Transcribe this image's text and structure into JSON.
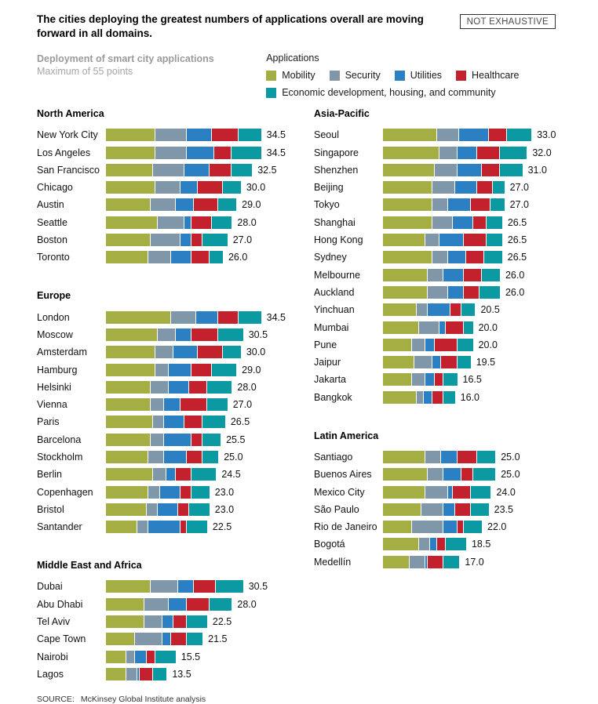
{
  "header": {
    "title": "The cities deploying the greatest numbers of applications overall are moving forward in all domains.",
    "badge": "NOT EXHAUSTIVE"
  },
  "subtitle": {
    "line1": "Deployment of smart city applications",
    "line2": "Maximum of 55 points"
  },
  "legend": {
    "title": "Applications",
    "items": [
      {
        "label": "Mobility",
        "color": "#a4ae42"
      },
      {
        "label": "Security",
        "color": "#8097a9"
      },
      {
        "label": "Utilities",
        "color": "#2b80c4"
      },
      {
        "label": "Healthcare",
        "color": "#c4212e"
      },
      {
        "label": "Economic development, housing, and community",
        "color": "#0c9aa2"
      }
    ]
  },
  "source": {
    "label": "SOURCE:",
    "text": "McKinsey Global Institute analysis"
  },
  "chart_data": {
    "type": "bar",
    "orientation": "horizontal",
    "stacked": true,
    "unit": "points",
    "max_points": 55,
    "series": [
      "Mobility",
      "Security",
      "Utilities",
      "Healthcare",
      "Economic development, housing, and community"
    ],
    "value_labels": "total shown at end of each bar, one decimal",
    "note": "segment values estimated from pixel widths; totals are labeled in the chart",
    "regions": [
      {
        "name": "North America",
        "column": "left",
        "cities": [
          {
            "name": "New York City",
            "total": 34.5,
            "segments": [
              11,
              7,
              5.5,
              6,
              5
            ]
          },
          {
            "name": "Los Angeles",
            "total": 34.5,
            "segments": [
              11,
              7,
              6,
              4,
              6.5
            ]
          },
          {
            "name": "San Francisco",
            "total": 32.5,
            "segments": [
              10.5,
              7,
              5.5,
              5,
              4.5
            ]
          },
          {
            "name": "Chicago",
            "total": 30.0,
            "segments": [
              11,
              5.5,
              4,
              5.5,
              4
            ]
          },
          {
            "name": "Austin",
            "total": 29.0,
            "segments": [
              10,
              5.5,
              4,
              5.5,
              4
            ]
          },
          {
            "name": "Seattle",
            "total": 28.0,
            "segments": [
              11.5,
              6,
              1.5,
              4.5,
              4.5
            ]
          },
          {
            "name": "Boston",
            "total": 27.0,
            "segments": [
              10,
              6.5,
              2.5,
              2.5,
              5.5
            ]
          },
          {
            "name": "Toronto",
            "total": 26.0,
            "segments": [
              9.5,
              5,
              4.5,
              4,
              3
            ]
          }
        ]
      },
      {
        "name": "Europe",
        "column": "left",
        "cities": [
          {
            "name": "London",
            "total": 34.5,
            "segments": [
              14.5,
              5.5,
              5,
              4.5,
              5
            ]
          },
          {
            "name": "Moscow",
            "total": 30.5,
            "segments": [
              11.5,
              4,
              3.5,
              6,
              5.5
            ]
          },
          {
            "name": "Amsterdam",
            "total": 30.0,
            "segments": [
              11,
              4,
              5.5,
              5.5,
              4
            ]
          },
          {
            "name": "Hamburg",
            "total": 29.0,
            "segments": [
              11,
              3,
              5,
              4.5,
              5.5
            ]
          },
          {
            "name": "Helsinki",
            "total": 28.0,
            "segments": [
              10,
              4,
              4.5,
              4,
              5.5
            ]
          },
          {
            "name": "Vienna",
            "total": 27.0,
            "segments": [
              10,
              3,
              3.5,
              6,
              4.5
            ]
          },
          {
            "name": "Paris",
            "total": 26.5,
            "segments": [
              10.5,
              2.5,
              4.5,
              4,
              5
            ]
          },
          {
            "name": "Barcelona",
            "total": 25.5,
            "segments": [
              10,
              3,
              6,
              2.5,
              4
            ]
          },
          {
            "name": "Stockholm",
            "total": 25.0,
            "segments": [
              9.5,
              3.5,
              5,
              3.5,
              3.5
            ]
          },
          {
            "name": "Berlin",
            "total": 24.5,
            "segments": [
              10.5,
              3,
              2,
              3.5,
              5.5
            ]
          },
          {
            "name": "Copenhagen",
            "total": 23.0,
            "segments": [
              9.5,
              2.5,
              4.5,
              2.5,
              4
            ]
          },
          {
            "name": "Bristol",
            "total": 23.0,
            "segments": [
              9,
              2.5,
              4.5,
              2.5,
              4.5
            ]
          },
          {
            "name": "Santander",
            "total": 22.5,
            "segments": [
              7,
              2.5,
              7,
              1.5,
              4.5
            ]
          }
        ]
      },
      {
        "name": "Middle East and Africa",
        "column": "left",
        "cities": [
          {
            "name": "Dubai",
            "total": 30.5,
            "segments": [
              10,
              6,
              3.5,
              5,
              6
            ]
          },
          {
            "name": "Abu Dhabi",
            "total": 28.0,
            "segments": [
              8.5,
              5.5,
              4,
              5,
              5
            ]
          },
          {
            "name": "Tel Aviv",
            "total": 22.5,
            "segments": [
              8.5,
              4,
              2.5,
              3,
              4.5
            ]
          },
          {
            "name": "Cape Town",
            "total": 21.5,
            "segments": [
              6.5,
              6,
              2,
              3.5,
              3.5
            ]
          },
          {
            "name": "Nairobi",
            "total": 15.5,
            "segments": [
              4.5,
              2,
              2.5,
              2,
              4.5
            ]
          },
          {
            "name": "Lagos",
            "total": 13.5,
            "segments": [
              4.5,
              2.5,
              0.5,
              3,
              3
            ]
          }
        ]
      },
      {
        "name": "Asia-Pacific",
        "column": "right",
        "cities": [
          {
            "name": "Seoul",
            "total": 33.0,
            "segments": [
              12,
              5,
              6.5,
              4,
              5.5
            ]
          },
          {
            "name": "Singapore",
            "total": 32.0,
            "segments": [
              12.5,
              4,
              4.5,
              5,
              6
            ]
          },
          {
            "name": "Shenzhen",
            "total": 31.0,
            "segments": [
              11.5,
              5,
              5.5,
              4,
              5
            ]
          },
          {
            "name": "Beijing",
            "total": 27.0,
            "segments": [
              11,
              5,
              5,
              3.5,
              2.5
            ]
          },
          {
            "name": "Tokyo",
            "total": 27.0,
            "segments": [
              11,
              3.5,
              5,
              4.5,
              3
            ]
          },
          {
            "name": "Shanghai",
            "total": 26.5,
            "segments": [
              11,
              4.5,
              4.5,
              3,
              3.5
            ]
          },
          {
            "name": "Hong Kong",
            "total": 26.5,
            "segments": [
              9.5,
              3,
              5.5,
              5,
              3.5
            ]
          },
          {
            "name": "Sydney",
            "total": 26.5,
            "segments": [
              11,
              3.5,
              4,
              4,
              4
            ]
          },
          {
            "name": "Melbourne",
            "total": 26.0,
            "segments": [
              10,
              3.5,
              4.5,
              4,
              4
            ]
          },
          {
            "name": "Auckland",
            "total": 26.0,
            "segments": [
              10,
              4.5,
              3.5,
              3.5,
              4.5
            ]
          },
          {
            "name": "Yinchuan",
            "total": 20.5,
            "segments": [
              7.5,
              2.5,
              5,
              2.5,
              3
            ]
          },
          {
            "name": "Mumbai",
            "total": 20.0,
            "segments": [
              8,
              4.5,
              1.5,
              4,
              2
            ]
          },
          {
            "name": "Pune",
            "total": 20.0,
            "segments": [
              6.5,
              3,
              2,
              5,
              3.5
            ]
          },
          {
            "name": "Jaipur",
            "total": 19.5,
            "segments": [
              7,
              4,
              2,
              3.5,
              3
            ]
          },
          {
            "name": "Jakarta",
            "total": 16.5,
            "segments": [
              6.5,
              3,
              2,
              2,
              3
            ]
          },
          {
            "name": "Bangkok",
            "total": 16.0,
            "segments": [
              7.5,
              1.5,
              2,
              2.5,
              2.5
            ]
          }
        ]
      },
      {
        "name": "Latin America",
        "column": "right",
        "cities": [
          {
            "name": "Santiago",
            "total": 25.0,
            "segments": [
              9.5,
              3.5,
              3.5,
              4.5,
              4
            ]
          },
          {
            "name": "Buenos Aires",
            "total": 25.0,
            "segments": [
              10,
              3.5,
              4,
              2.5,
              5
            ]
          },
          {
            "name": "Mexico City",
            "total": 24.0,
            "segments": [
              9.5,
              5,
              1,
              4,
              4.5
            ]
          },
          {
            "name": "São Paulo",
            "total": 23.5,
            "segments": [
              8.5,
              5,
              2.5,
              3.5,
              4
            ]
          },
          {
            "name": "Rio de Janeiro",
            "total": 22.0,
            "segments": [
              6.5,
              7,
              3,
              1.5,
              4
            ]
          },
          {
            "name": "Bogotá",
            "total": 18.5,
            "segments": [
              8,
              2.5,
              1.5,
              2,
              4.5
            ]
          },
          {
            "name": "Medellín",
            "total": 17.0,
            "segments": [
              6,
              3.5,
              0.5,
              3.5,
              3.5
            ]
          }
        ]
      }
    ]
  }
}
